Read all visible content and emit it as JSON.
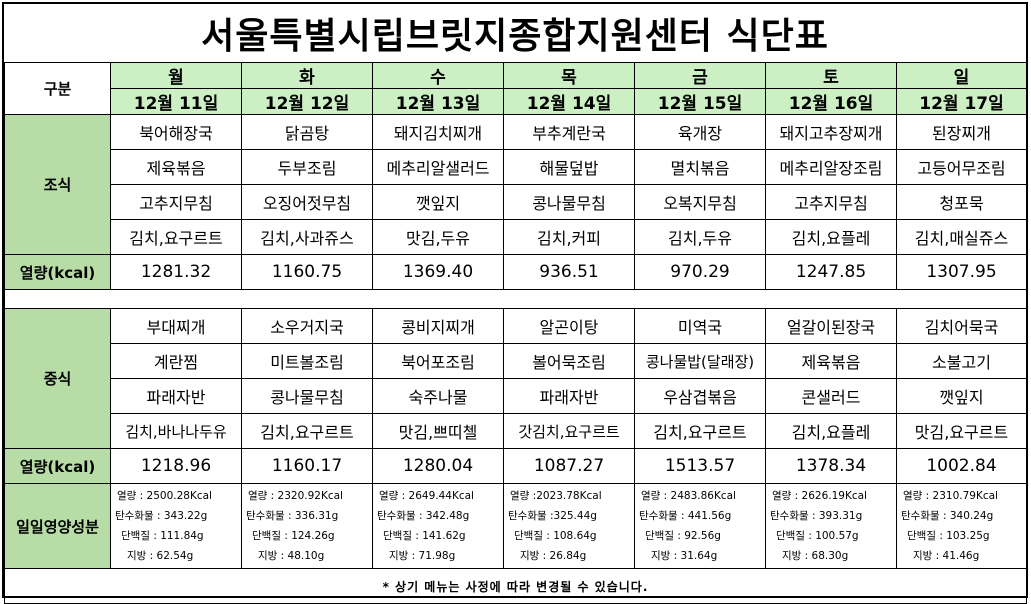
{
  "title": "서울특별시립브릿지종합지원센터  식단표",
  "header": {
    "category_label": "구분",
    "days": [
      {
        "day": "월",
        "date": "12월 11일"
      },
      {
        "day": "화",
        "date": "12월 12일"
      },
      {
        "day": "수",
        "date": "12월 13일"
      },
      {
        "day": "목",
        "date": "12월 14일"
      },
      {
        "day": "금",
        "date": "12월 15일"
      },
      {
        "day": "토",
        "date": "12월 16일"
      },
      {
        "day": "일",
        "date": "12월 17일"
      }
    ]
  },
  "breakfast": {
    "label": "조식",
    "rows": [
      [
        "북어해장국",
        "닭곰탕",
        "돼지김치찌개",
        "부추계란국",
        "육개장",
        "돼지고추장찌개",
        "된장찌개"
      ],
      [
        "제육볶음",
        "두부조림",
        "메추리알샐러드",
        "해물덮밥",
        "멸치볶음",
        "메추리알장조림",
        "고등어무조림"
      ],
      [
        "고추지무침",
        "오징어젓무침",
        "깻잎지",
        "콩나물무침",
        "오복지무침",
        "고추지무침",
        "청포묵"
      ],
      [
        "김치,요구르트",
        "김치,사과쥬스",
        "맛김,두유",
        "김치,커피",
        "김치,두유",
        "김치,요플레",
        "김치,매실쥬스"
      ]
    ],
    "kcal_label": "열량(kcal)",
    "kcal": [
      "1281.32",
      "1160.75",
      "1369.40",
      "936.51",
      "970.29",
      "1247.85",
      "1307.95"
    ]
  },
  "lunch": {
    "label": "중식",
    "rows": [
      [
        "부대찌개",
        "소우거지국",
        "콩비지찌개",
        "알곤이탕",
        "미역국",
        "얼갈이된장국",
        "김치어묵국"
      ],
      [
        "계란찜",
        "미트볼조림",
        "북어포조림",
        "볼어묵조림",
        "콩나물밥(달래장)",
        "제육볶음",
        "소불고기"
      ],
      [
        "파래자반",
        "콩나물무침",
        "숙주나물",
        "파래자반",
        "우삼겹볶음",
        "콘샐러드",
        "깻잎지"
      ],
      [
        "김치,바나나두유",
        "김치,요구르트",
        "맛김,쁘띠첼",
        "갓김치,요구르트",
        "김치,요구르트",
        "김치,요플레",
        "맛김,요구르트"
      ]
    ],
    "kcal_label": "열량(kcal)",
    "kcal": [
      "1218.96",
      "1160.17",
      "1280.04",
      "1087.27",
      "1513.57",
      "1378.34",
      "1002.84"
    ]
  },
  "nutrition": {
    "label": "일일영양성분",
    "days": [
      {
        "kcal": "열량 : 2500.28Kcal",
        "carb": "탄수화물 : 343.22g",
        "protein": "단백질 : 111.84g",
        "fat": "지방 : 62.54g"
      },
      {
        "kcal": "열량 : 2320.92Kcal",
        "carb": "탄수화물 : 336.31g",
        "protein": "단백질 : 124.26g",
        "fat": "지방 : 48.10g"
      },
      {
        "kcal": "열량 : 2649.44Kcal",
        "carb": "탄수화물 : 342.48g",
        "protein": "단백질 : 141.62g",
        "fat": "지방 : 71.98g"
      },
      {
        "kcal": "열량 :2023.78Kcal",
        "carb": "탄수화물 :325.44g",
        "protein": "단백질 : 108.64g",
        "fat": "지방 : 26.84g"
      },
      {
        "kcal": "열량 : 2483.86Kcal",
        "carb": "탄수화물 : 441.56g",
        "protein": "단백질 : 92.56g",
        "fat": "지방 : 31.64g"
      },
      {
        "kcal": "열량 : 2626.19Kcal",
        "carb": "탄수화물 : 393.31g",
        "protein": "단백질 : 100.57g",
        "fat": "지방 : 68.30g"
      },
      {
        "kcal": "열량 : 2310.79Kcal",
        "carb": "탄수화물 : 340.24g",
        "protein": "단백질 : 103.25g",
        "fat": "지방 : 41.46g"
      }
    ]
  },
  "note": "* 상기 메뉴는 사정에 따라 변경될 수 있습니다.",
  "colors": {
    "header_bg": "#ccf0c4",
    "label_bg": "#b7dca6",
    "border": "#000000"
  }
}
